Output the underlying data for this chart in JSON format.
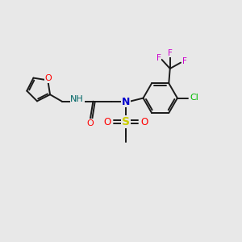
{
  "bg_color": "#e8e8e8",
  "bond_color": "#1a1a1a",
  "O_color": "#ff0000",
  "N_color": "#0000cc",
  "S_color": "#cccc00",
  "F_color": "#cc00cc",
  "Cl_color": "#00bb00",
  "H_color": "#006666",
  "figsize": [
    3.0,
    3.0
  ],
  "dpi": 100,
  "xlim": [
    0,
    10
  ],
  "ylim": [
    0,
    10
  ]
}
